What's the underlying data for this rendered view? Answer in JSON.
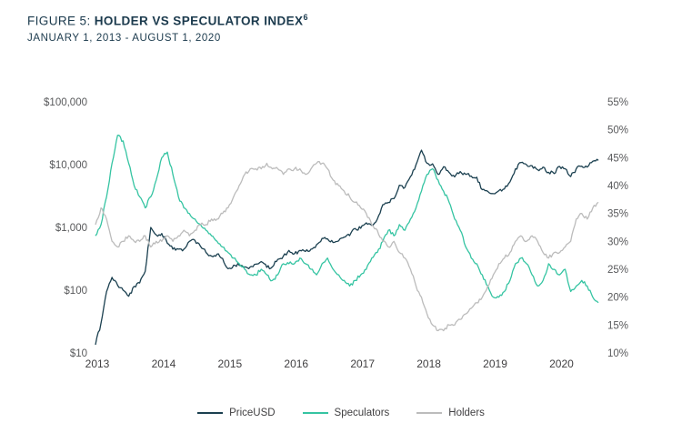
{
  "header": {
    "figure_label": "FIGURE 5:",
    "title": "HOLDER VS SPECULATOR INDEX",
    "title_superscript": "6",
    "subtitle": "JANUARY 1, 2013 - AUGUST 1, 2020"
  },
  "chart_data": {
    "type": "line",
    "title": "Holder vs Speculator Index",
    "time_start": "2013-01",
    "time_end": "2020-08",
    "interval": "monthly",
    "grid": false,
    "legend_position": "bottom-center",
    "x_axis": {
      "labels": [
        "2013",
        "2014",
        "2015",
        "2016",
        "2017",
        "2018",
        "2019",
        "2020"
      ],
      "values": [
        2013,
        2014,
        2015,
        2016,
        2017,
        2018,
        2019,
        2020
      ]
    },
    "left_axis": {
      "scale": "log",
      "range": [
        10,
        100000
      ],
      "labels": [
        "$100,000",
        "$10,000",
        "$1,000",
        "$100",
        "$10"
      ],
      "values": [
        100000,
        10000,
        1000,
        100,
        10
      ]
    },
    "right_axis": {
      "scale": "linear",
      "range": [
        10,
        55
      ],
      "labels": [
        "55%",
        "50%",
        "45%",
        "40%",
        "35%",
        "30%",
        "25%",
        "20%",
        "15%",
        "10%"
      ],
      "values": [
        55,
        50,
        45,
        40,
        35,
        30,
        25,
        20,
        15,
        10
      ]
    },
    "series": [
      {
        "name": "PriceUSD",
        "axis": "left",
        "color": "#1b4050",
        "values": [
          13.5,
          30,
          95,
          160,
          120,
          100,
          80,
          115,
          130,
          200,
          1000,
          760,
          800,
          560,
          450,
          450,
          450,
          600,
          620,
          500,
          400,
          350,
          375,
          320,
          220,
          250,
          250,
          235,
          235,
          260,
          285,
          230,
          235,
          310,
          350,
          430,
          380,
          430,
          415,
          450,
          530,
          670,
          660,
          575,
          610,
          700,
          740,
          960,
          970,
          1180,
          1080,
          1350,
          2300,
          2500,
          2870,
          4700,
          4340,
          6450,
          10000,
          17000,
          10500,
          10300,
          7000,
          9250,
          7500,
          6400,
          7750,
          7000,
          6600,
          6300,
          4000,
          3750,
          3450,
          3850,
          4100,
          5300,
          8550,
          10800,
          10000,
          9600,
          8300,
          9150,
          7550,
          7200,
          9350,
          8600,
          6450,
          8600,
          9450,
          9140,
          11350,
          11700
        ]
      },
      {
        "name": "Speculators",
        "axis": "right",
        "color": "#35c4a2",
        "values": [
          31,
          33,
          38,
          44,
          49,
          48,
          44,
          40,
          38,
          36,
          38,
          41,
          45,
          46,
          42,
          38,
          36,
          35,
          34,
          33,
          32,
          31,
          30,
          29,
          28,
          27,
          26,
          25,
          24,
          24,
          25,
          24,
          23,
          24,
          26,
          26,
          26,
          27,
          26,
          25,
          24,
          26,
          27,
          25,
          24,
          23,
          22,
          23,
          24,
          25,
          27,
          28,
          30,
          32,
          31,
          33,
          32,
          34,
          36,
          39,
          42,
          43,
          41,
          39,
          37,
          34,
          32,
          29,
          27,
          26,
          24,
          22,
          20,
          20,
          21,
          23,
          26,
          27,
          26,
          24,
          22,
          23,
          26,
          25,
          24,
          25,
          21,
          22,
          23,
          22,
          20,
          19
        ]
      },
      {
        "name": "Holders",
        "axis": "right",
        "color": "#bcbcbc",
        "values": [
          33,
          36,
          34,
          30,
          29,
          30,
          31,
          30,
          30,
          31,
          29,
          30,
          30,
          31,
          30,
          31,
          32,
          31,
          32,
          33,
          33,
          34,
          34,
          35,
          36,
          38,
          40,
          42,
          43,
          43,
          43,
          44,
          43,
          43,
          42,
          43,
          43,
          43,
          42,
          43,
          44,
          44,
          43,
          41,
          40,
          39,
          38,
          37,
          36,
          35,
          33,
          32,
          30,
          29,
          30,
          28,
          27,
          25,
          22,
          20,
          17,
          15,
          14,
          14,
          15,
          15,
          16,
          17,
          18,
          19,
          20,
          22,
          24,
          26,
          27,
          28,
          30,
          31,
          30,
          31,
          30,
          28,
          27,
          28,
          28,
          29,
          30,
          34,
          35,
          34,
          36,
          37
        ]
      }
    ]
  }
}
